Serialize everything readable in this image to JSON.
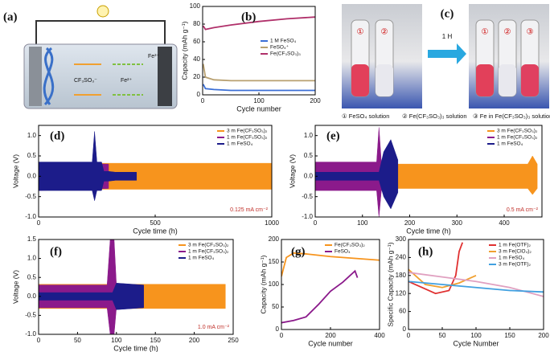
{
  "figure": {
    "a": {
      "label": "(a)",
      "anion": "CF₃SO₃⁻",
      "fe2": "Fe²⁺",
      "fe3": "Fe³⁺"
    },
    "c": {
      "label": "(c)",
      "arrow": "1 H",
      "tubes": [
        "①",
        "②",
        "①",
        "②",
        "③"
      ],
      "captions": [
        "① FeSO₄ solution",
        "② Fe(CF₃SO₃)₃ solution",
        "③ Fe in Fe(CF₃SO₃)₃ solution"
      ]
    }
  },
  "chart_data": [
    {
      "type": "line",
      "label": "(b)",
      "xlabel": "Cycle number",
      "ylabel": "Capacity (mAh g⁻¹)",
      "xlim": [
        0,
        200
      ],
      "xticks": [
        0,
        100,
        200
      ],
      "ylim": [
        0,
        100
      ],
      "yticks": [
        0,
        20,
        40,
        60,
        80,
        100
      ],
      "legend": "center right",
      "series": [
        {
          "name": "1 M FeSO₄",
          "color": "#3b6fd6",
          "x": [
            1,
            5,
            20,
            50,
            100,
            150,
            200
          ],
          "values": [
            12,
            7,
            6,
            5,
            5,
            5,
            5
          ]
        },
        {
          "name": "FeSO₄⁺",
          "color": "#b8a070",
          "x": [
            1,
            5,
            20,
            50,
            100,
            150,
            200
          ],
          "values": [
            35,
            20,
            17,
            16,
            16,
            16,
            16
          ]
        },
        {
          "name": "Fe(CF₃SO₃)₃",
          "color": "#b0306a",
          "x": [
            1,
            5,
            20,
            50,
            100,
            150,
            200
          ],
          "values": [
            78,
            74,
            76,
            79,
            83,
            86,
            88
          ]
        }
      ]
    },
    {
      "type": "voltage",
      "label": "(d)",
      "xlabel": "Cycle time (h)",
      "ylabel": "Voltage (V)",
      "rate": "0.125 mA cm⁻²",
      "xlim": [
        0,
        1000
      ],
      "xticks": [
        0,
        500,
        1000
      ],
      "ylim": [
        -1,
        1.25
      ],
      "yticks": [
        {
          "value": -1,
          "label": "-1.0"
        },
        -0.5,
        {
          "value": 0,
          "label": "0.0"
        },
        0.5,
        {
          "value": 1,
          "label": "1.0"
        }
      ],
      "legend": "upper right",
      "series": [
        {
          "name": "3 m Fe(CF₃SO₃)₂",
          "color": "#f7941d",
          "x": [
            0,
            1000
          ],
          "values": [
            0.32,
            0.32
          ],
          "lower": [
            -0.32,
            -0.32
          ]
        },
        {
          "name": "1 m Fe(CF₃SO₃)₂",
          "color": "#8b1a8b",
          "x": [
            0,
            300
          ],
          "values": [
            0.33,
            0.3
          ],
          "lower": [
            -0.35,
            -0.3
          ]
        },
        {
          "name": "1 m FeSO₄",
          "color": "#1c1c8a",
          "x": [
            0,
            230,
            240,
            250,
            270,
            280,
            300,
            330,
            420
          ],
          "values": [
            0.35,
            0.35,
            1.1,
            0.35,
            0.35,
            0.12,
            0.12,
            0.1,
            0.1
          ],
          "lower": [
            -0.35,
            -0.35,
            -0.6,
            -0.35,
            -0.35,
            -0.12,
            -0.12,
            -0.1,
            -0.1
          ]
        }
      ]
    },
    {
      "type": "voltage",
      "label": "(e)",
      "xlabel": "Cycle time (h)",
      "ylabel": "Voltage (V)",
      "rate": "0.5 mA cm⁻²",
      "xlim": [
        0,
        480
      ],
      "xticks": [
        0,
        100,
        200,
        300,
        400
      ],
      "ylim": [
        -1,
        1.25
      ],
      "yticks": [
        {
          "value": -1,
          "label": "-1.0"
        },
        -0.5,
        {
          "value": 0,
          "label": "0.0"
        },
        0.5,
        {
          "value": 1,
          "label": "1.0"
        }
      ],
      "legend": "upper right",
      "series": [
        {
          "name": "3 m Fe(CF₃SO₃)₂",
          "color": "#f7941d",
          "x": [
            0,
            450,
            460,
            470
          ],
          "values": [
            0.3,
            0.3,
            0.5,
            0.3
          ],
          "lower": [
            -0.3,
            -0.3,
            -0.45,
            -0.3
          ]
        },
        {
          "name": "1 m Fe(CF₃SO₃)₂",
          "color": "#8b1a8b",
          "x": [
            0,
            130,
            135,
            140,
            165
          ],
          "values": [
            0.35,
            0.35,
            1.2,
            0.35,
            0.35
          ],
          "lower": [
            -0.35,
            -0.35,
            -1,
            -0.35,
            -0.35
          ]
        },
        {
          "name": "1 m FeSO₄",
          "color": "#1c1c8a",
          "x": [
            0,
            135,
            145,
            160,
            175
          ],
          "values": [
            0.1,
            0.1,
            0.6,
            0.9,
            0.4
          ],
          "lower": [
            -0.1,
            -0.1,
            -0.5,
            -0.8,
            -0.4
          ]
        }
      ]
    },
    {
      "type": "voltage",
      "label": "(f)",
      "xlabel": "Cycle time (h)",
      "ylabel": "Voltage (V)",
      "rate": "1.0 mA cm⁻²",
      "xlim": [
        0,
        250
      ],
      "xticks": [
        0,
        50,
        100,
        150,
        200,
        250
      ],
      "ylim": [
        -1,
        1.5
      ],
      "yticks": [
        {
          "value": -1,
          "label": "-1.0"
        },
        -0.5,
        {
          "value": 0,
          "label": "0.0"
        },
        0.5,
        {
          "value": 1,
          "label": "1.0"
        },
        1.5
      ],
      "legend": "upper right",
      "series": [
        {
          "name": "3 m Fe(CF₃SO₃)₂",
          "color": "#f7941d",
          "x": [
            0,
            240
          ],
          "values": [
            0.32,
            0.32
          ],
          "lower": [
            -0.32,
            -0.32
          ]
        },
        {
          "name": "1 m Fe(CF₃SO₃)₂",
          "color": "#8b1a8b",
          "x": [
            0,
            88,
            92,
            97,
            100
          ],
          "values": [
            0.3,
            0.3,
            1.5,
            1.5,
            0.3
          ],
          "lower": [
            -0.3,
            -0.3,
            -1,
            -1,
            -0.3
          ]
        },
        {
          "name": "1 m FeSO₄",
          "color": "#1c1c8a",
          "x": [
            0,
            95,
            100,
            135
          ],
          "values": [
            0.1,
            0.1,
            0.35,
            0.3
          ],
          "lower": [
            -0.1,
            -0.1,
            -0.35,
            -0.3
          ]
        }
      ]
    },
    {
      "type": "line",
      "label": "(g)",
      "xlabel": "Cycle number",
      "ylabel": "Capacity (mAh g⁻¹)",
      "xlim": [
        0,
        400
      ],
      "xticks": [
        0,
        200,
        400
      ],
      "ylim": [
        0,
        200
      ],
      "yticks": [
        0,
        50,
        100,
        150,
        200
      ],
      "legend": "upper right",
      "series": [
        {
          "name": "Fe(CF₃SO₃)₂",
          "color": "#f7941d",
          "x": [
            0,
            20,
            50,
            100,
            200,
            300,
            400
          ],
          "values": [
            118,
            160,
            170,
            168,
            162,
            158,
            154
          ]
        },
        {
          "name": "FeSO₄",
          "color": "#8b1a8b",
          "x": [
            0,
            50,
            100,
            150,
            200,
            250,
            300,
            310
          ],
          "values": [
            15,
            20,
            28,
            55,
            85,
            105,
            130,
            115
          ]
        }
      ]
    },
    {
      "type": "line",
      "label": "(h)",
      "xlabel": "Cycle Number",
      "ylabel": "Specific Capacity (mAh g⁻¹)",
      "xlim": [
        0,
        200
      ],
      "xticks": [
        0,
        50,
        100,
        150,
        200
      ],
      "ylim": [
        0,
        300
      ],
      "yticks": [
        0,
        60,
        120,
        180,
        240,
        300
      ],
      "legend": "upper right",
      "series": [
        {
          "name": "1 m Fe(OTF)₂",
          "color": "#e03030",
          "x": [
            0,
            20,
            40,
            60,
            70,
            75,
            80
          ],
          "values": [
            160,
            140,
            120,
            130,
            180,
            260,
            290
          ]
        },
        {
          "name": "3 m Fe(ClO₄)₂",
          "color": "#f0a030",
          "x": [
            0,
            25,
            50,
            75,
            100
          ],
          "values": [
            200,
            150,
            140,
            155,
            180
          ]
        },
        {
          "name": "1 m FeSO₄",
          "color": "#e0a0c0",
          "x": [
            0,
            50,
            100,
            150,
            200
          ],
          "values": [
            190,
            175,
            160,
            140,
            110
          ]
        },
        {
          "name": "3 m Fe(OTF)₂",
          "color": "#40a0e0",
          "x": [
            0,
            50,
            100,
            150,
            200
          ],
          "values": [
            160,
            150,
            140,
            130,
            125
          ]
        }
      ]
    }
  ]
}
